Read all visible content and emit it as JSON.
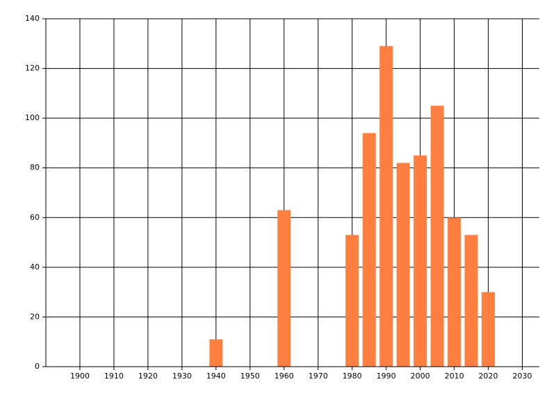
{
  "chart_data": {
    "type": "bar",
    "x": [
      1940,
      1960,
      1980,
      1985,
      1990,
      1995,
      2000,
      2005,
      2010,
      2015,
      2020
    ],
    "values": [
      11,
      63,
      53,
      94,
      129,
      82,
      85,
      105,
      60,
      53,
      30
    ],
    "color": "#ff7f41",
    "xlim": [
      1890,
      2035
    ],
    "xticks": [
      1900,
      1910,
      1920,
      1930,
      1940,
      1950,
      1960,
      1970,
      1980,
      1990,
      2000,
      2010,
      2020,
      2030
    ],
    "ylim": [
      0,
      140
    ],
    "yticks": [
      0,
      20,
      40,
      60,
      80,
      100,
      120,
      140
    ],
    "grid": true
  }
}
